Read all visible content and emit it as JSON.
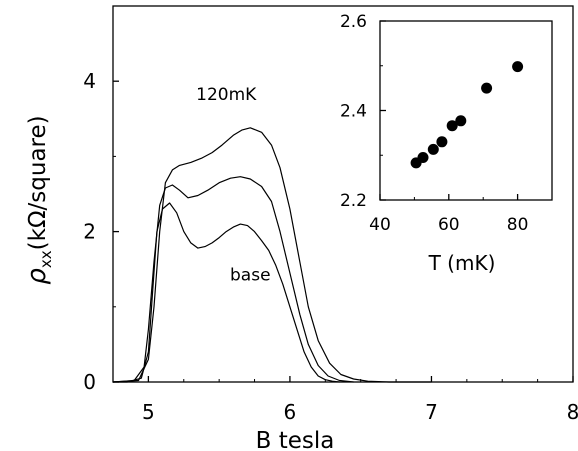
{
  "chart_data": [
    {
      "type": "line",
      "xlabel": "B tesla",
      "ylabel": "ρxx(kΩ/square)",
      "ylabel_main": "ρ",
      "ylabel_sub": "xx",
      "ylabel_rest": "(kΩ/square)",
      "xlim": [
        4.75,
        8.0
      ],
      "ylim": [
        0,
        5.0
      ],
      "xticks": [
        5,
        6,
        7,
        8
      ],
      "yticks": [
        0,
        2,
        4
      ],
      "xtick_labels": [
        "5",
        "6",
        "7",
        "8"
      ],
      "ytick_labels": [
        "0",
        "2",
        "4"
      ],
      "grid": false,
      "annotations": [
        {
          "text": "120mK",
          "x": 5.55,
          "y": 3.75
        },
        {
          "text": "base",
          "x": 5.72,
          "y": 1.35
        }
      ],
      "series": [
        {
          "x": [
            4.75,
            4.85,
            4.95,
            5.0,
            5.03,
            5.06,
            5.1,
            5.15,
            5.2,
            5.25,
            5.3,
            5.35,
            5.4,
            5.45,
            5.5,
            5.55,
            5.6,
            5.65,
            5.7,
            5.75,
            5.8,
            5.85,
            5.9,
            5.95,
            6.0,
            6.05,
            6.1,
            6.15,
            6.2,
            6.25,
            6.3,
            6.35
          ],
          "y": [
            0,
            0.0,
            0.05,
            0.4,
            1.2,
            2.0,
            2.3,
            2.38,
            2.25,
            2.0,
            1.85,
            1.78,
            1.8,
            1.85,
            1.92,
            2.0,
            2.06,
            2.1,
            2.08,
            2.0,
            1.88,
            1.75,
            1.55,
            1.3,
            1.0,
            0.7,
            0.4,
            0.2,
            0.08,
            0.03,
            0.01,
            0.0
          ]
        },
        {
          "x": [
            4.75,
            4.9,
            4.97,
            5.0,
            5.04,
            5.08,
            5.12,
            5.17,
            5.22,
            5.28,
            5.35,
            5.42,
            5.5,
            5.58,
            5.65,
            5.72,
            5.8,
            5.87,
            5.93,
            6.0,
            6.07,
            6.13,
            6.2,
            6.27,
            6.35,
            6.45
          ],
          "y": [
            0,
            0.02,
            0.2,
            0.7,
            1.6,
            2.35,
            2.58,
            2.62,
            2.55,
            2.45,
            2.48,
            2.55,
            2.65,
            2.71,
            2.73,
            2.7,
            2.6,
            2.4,
            2.0,
            1.45,
            0.9,
            0.5,
            0.22,
            0.08,
            0.02,
            0.0
          ]
        },
        {
          "x": [
            4.75,
            4.93,
            5.0,
            5.04,
            5.08,
            5.12,
            5.17,
            5.22,
            5.3,
            5.38,
            5.45,
            5.52,
            5.6,
            5.66,
            5.72,
            5.8,
            5.87,
            5.93,
            6.0,
            6.07,
            6.13,
            6.2,
            6.28,
            6.36,
            6.45,
            6.55,
            6.7,
            7.0
          ],
          "y": [
            0,
            0.02,
            0.3,
            1.0,
            2.0,
            2.65,
            2.82,
            2.88,
            2.92,
            2.98,
            3.05,
            3.15,
            3.28,
            3.35,
            3.38,
            3.32,
            3.15,
            2.85,
            2.3,
            1.6,
            1.0,
            0.55,
            0.25,
            0.1,
            0.04,
            0.01,
            0.0,
            0.0
          ]
        }
      ]
    },
    {
      "type": "scatter",
      "xlabel": "T (mK)",
      "ylabel": "",
      "xlim": [
        40,
        90
      ],
      "ylim": [
        2.2,
        2.6
      ],
      "xticks": [
        40,
        60,
        80
      ],
      "yticks": [
        2.2,
        2.4,
        2.6
      ],
      "xtick_labels": [
        "40",
        "60",
        "80"
      ],
      "ytick_labels": [
        "2.2",
        "2.4",
        "2.6"
      ],
      "grid": false,
      "series": [
        {
          "x": [
            50.5,
            52.5,
            55.5,
            58,
            61,
            63.5,
            71,
            80
          ],
          "y": [
            2.283,
            2.295,
            2.313,
            2.33,
            2.366,
            2.377,
            2.45,
            2.498
          ]
        }
      ]
    }
  ]
}
